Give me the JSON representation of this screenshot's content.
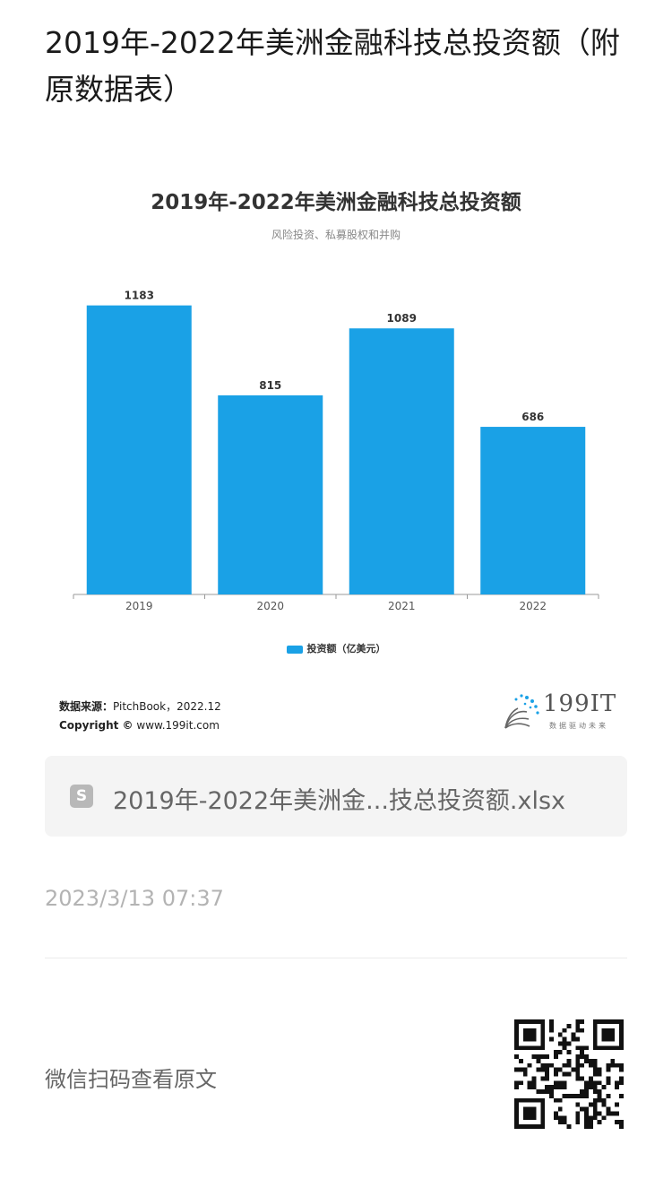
{
  "article": {
    "title": "2019年-2022年美洲金融科技总投资额（附原数据表）"
  },
  "chart_data": {
    "type": "bar",
    "title": "2019年-2022年美洲金融科技总投资额",
    "subtitle": "风险投资、私募股权和并购",
    "categories": [
      "2019",
      "2020",
      "2021",
      "2022"
    ],
    "series": [
      {
        "name": "投资额（亿美元）",
        "values": [
          1183,
          815,
          1089,
          686
        ]
      }
    ],
    "ylim": [
      0,
      1200
    ],
    "grid": false,
    "legend": "bottom",
    "bar_color": "#1aa1e6"
  },
  "source": {
    "label": "数据来源：",
    "text": "PitchBook，2022.12",
    "copyright_label": "Copyright ©",
    "copyright_text": "www.199it.com"
  },
  "logo": {
    "name": "199IT",
    "tagline": "数据驱动未来"
  },
  "attachment": {
    "file_name": "2019年-2022年美洲金...技总投资额.xlsx",
    "icon": "spreadsheet-file-icon",
    "icon_letter": "S"
  },
  "meta": {
    "timestamp": "2023/3/13 07:37",
    "wechat_prompt": "微信扫码查看原文"
  },
  "qr": {
    "icon": "qr-code-icon"
  }
}
